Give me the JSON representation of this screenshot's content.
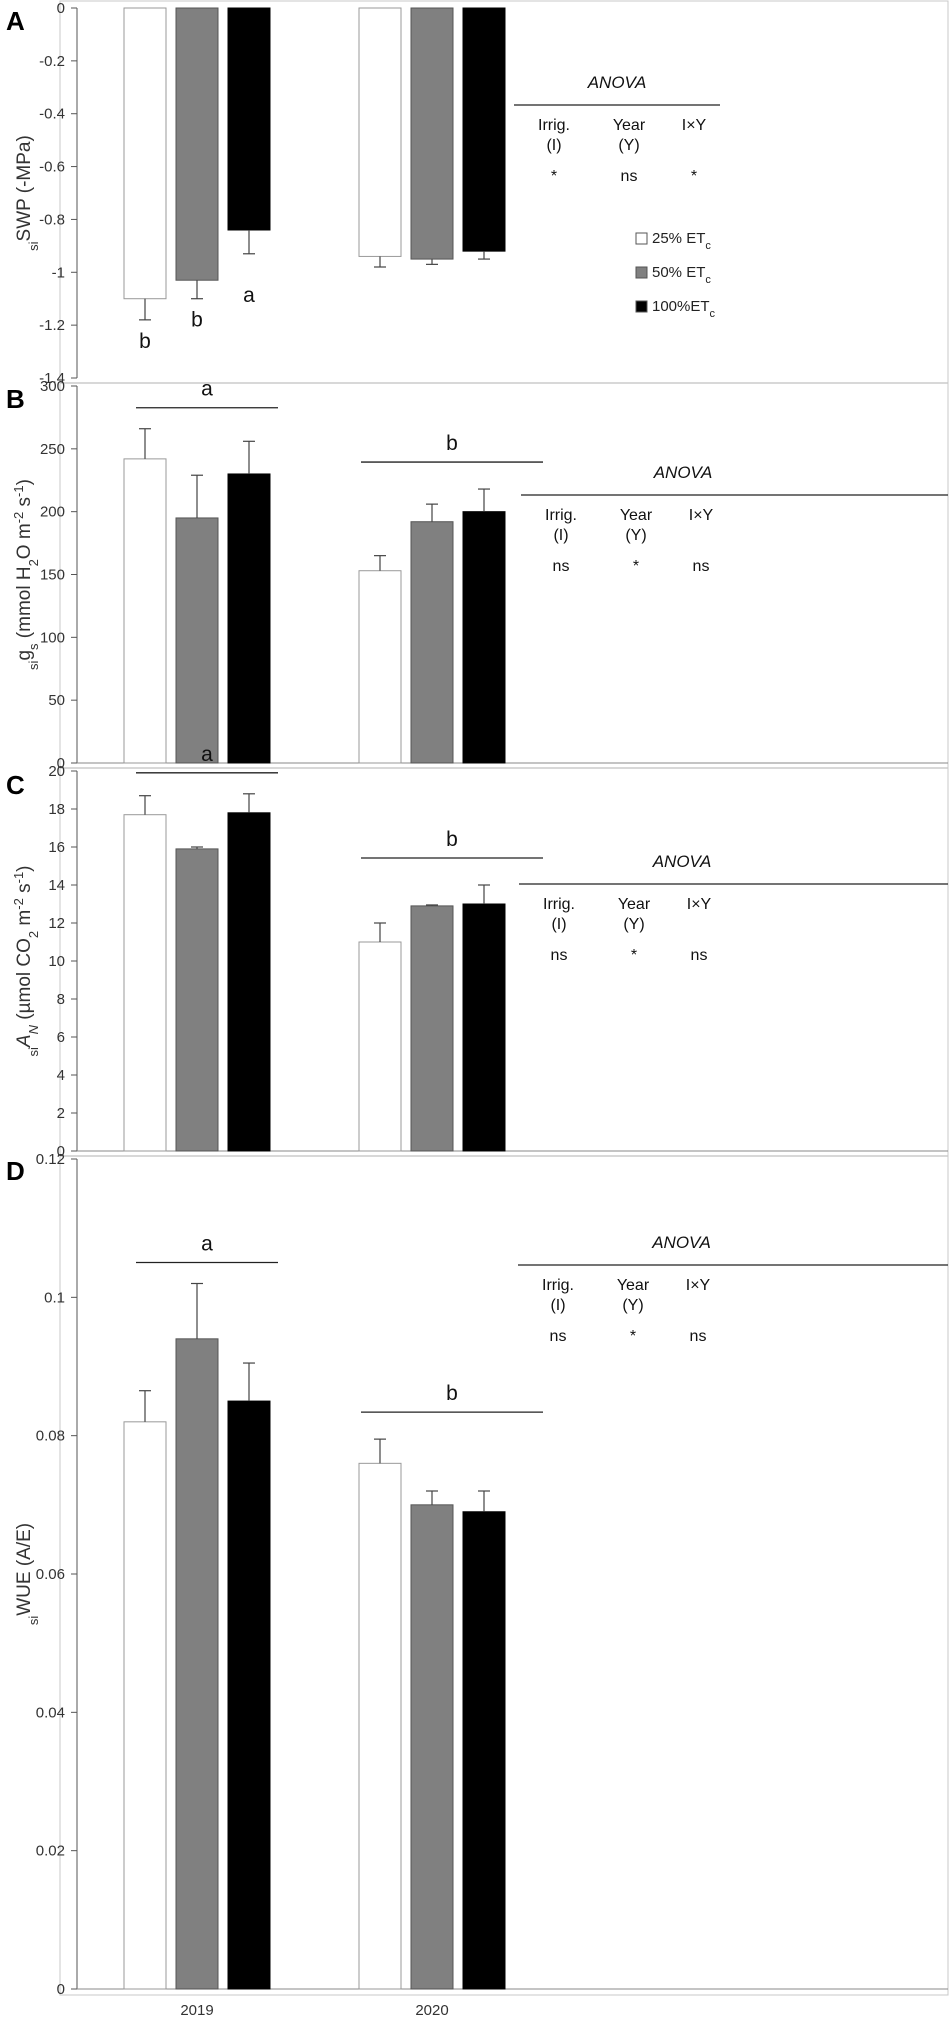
{
  "figure": {
    "x_categories": [
      "2019",
      "2020"
    ]
  },
  "legend": {
    "items": [
      {
        "main": "25% ET",
        "sub": "c",
        "color": "#ffffff"
      },
      {
        "main": "50% ET",
        "sub": "c",
        "color": "#808080"
      },
      {
        "main": "100%ET",
        "sub": "c",
        "color": "#000000"
      }
    ]
  },
  "chart_data": [
    {
      "type": "bar",
      "panel": "A",
      "ylabel_parts": [
        {
          "t": "si",
          "s": "sub"
        },
        {
          "t": "SWP (-MPa)",
          "s": "n"
        }
      ],
      "ylim": [
        -1.4,
        0
      ],
      "ytick_step": 0.2,
      "ytick_labels": [
        "0",
        "-0.2",
        "-0.4",
        "-0.6",
        "-0.8",
        "-1",
        "-1.2",
        "-1.4"
      ],
      "categories": [
        "2019",
        "2020"
      ],
      "series": [
        {
          "name": "25% ETc",
          "color": "#ffffff",
          "values": [
            -1.1,
            -0.94
          ],
          "errors": [
            0.08,
            0.04
          ]
        },
        {
          "name": "50% ETc",
          "color": "#808080",
          "values": [
            -1.03,
            -0.95
          ],
          "errors": [
            0.07,
            0.02
          ]
        },
        {
          "name": "100%ETc",
          "color": "#000000",
          "values": [
            -0.84,
            -0.92
          ],
          "errors": [
            0.09,
            0.03
          ]
        }
      ],
      "bar_letters": [
        [
          "b",
          ""
        ],
        [
          "b",
          ""
        ],
        [
          "a",
          ""
        ]
      ],
      "group_letters": [
        "",
        ""
      ],
      "anova": {
        "title": "ANOVA",
        "headers": [
          [
            "Irrig.",
            "(I)"
          ],
          [
            "Year",
            "(Y)"
          ],
          [
            "I×Y"
          ]
        ],
        "values": [
          "*",
          "ns",
          "*"
        ]
      },
      "show_legend": true
    },
    {
      "type": "bar",
      "panel": "B",
      "ylabel_parts": [
        {
          "t": "si",
          "s": "sub"
        },
        {
          "t": "g",
          "s": "n"
        },
        {
          "t": "s",
          "s": "sub"
        },
        {
          "t": " (mmol H",
          "s": "n"
        },
        {
          "t": "2",
          "s": "sub"
        },
        {
          "t": "O m",
          "s": "n"
        },
        {
          "t": "-2",
          "s": "sup"
        },
        {
          "t": " s",
          "s": "n"
        },
        {
          "t": "-1",
          "s": "sup"
        },
        {
          "t": ")",
          "s": "n"
        }
      ],
      "ylim": [
        0,
        300
      ],
      "ytick_step": 50,
      "ytick_labels": [
        "0",
        "50",
        "100",
        "150",
        "200",
        "250",
        "300"
      ],
      "categories": [
        "2019",
        "2020"
      ],
      "series": [
        {
          "name": "25% ETc",
          "color": "#ffffff",
          "values": [
            242,
            153
          ],
          "errors": [
            24,
            12
          ]
        },
        {
          "name": "50% ETc",
          "color": "#808080",
          "values": [
            195,
            192
          ],
          "errors": [
            34,
            14
          ]
        },
        {
          "name": "100%ETc",
          "color": "#000000",
          "values": [
            230,
            200
          ],
          "errors": [
            26,
            18
          ]
        }
      ],
      "bar_letters": [
        [
          "",
          ""
        ],
        [
          "",
          ""
        ],
        [
          "",
          ""
        ]
      ],
      "group_letters": [
        "a",
        "b"
      ],
      "anova": {
        "title": "ANOVA",
        "headers": [
          [
            "Irrig.",
            "(I)"
          ],
          [
            "Year",
            "(Y)"
          ],
          [
            "I×Y"
          ]
        ],
        "values": [
          "ns",
          "*",
          "ns"
        ]
      },
      "show_legend": false
    },
    {
      "type": "bar",
      "panel": "C",
      "ylabel_parts": [
        {
          "t": "si",
          "s": "sub"
        },
        {
          "t": "A",
          "s": "it"
        },
        {
          "t": "N",
          "s": "subit"
        },
        {
          "t": " (µmol CO",
          "s": "n"
        },
        {
          "t": "2",
          "s": "sub"
        },
        {
          "t": " m",
          "s": "n"
        },
        {
          "t": "-2",
          "s": "sup"
        },
        {
          "t": " s",
          "s": "n"
        },
        {
          "t": "-1",
          "s": "sup"
        },
        {
          "t": ")",
          "s": "n"
        }
      ],
      "ylim": [
        0,
        20
      ],
      "ytick_step": 2,
      "ytick_labels": [
        "0",
        "2",
        "4",
        "6",
        "8",
        "10",
        "12",
        "14",
        "16",
        "18",
        "20"
      ],
      "categories": [
        "2019",
        "2020"
      ],
      "series": [
        {
          "name": "25% ETc",
          "color": "#ffffff",
          "values": [
            17.7,
            11.0
          ],
          "errors": [
            1.0,
            1.0
          ]
        },
        {
          "name": "50% ETc",
          "color": "#808080",
          "values": [
            15.9,
            12.9
          ],
          "errors": [
            0.1,
            0.05
          ]
        },
        {
          "name": "100%ETc",
          "color": "#000000",
          "values": [
            17.8,
            13.0
          ],
          "errors": [
            1.0,
            1.0
          ]
        }
      ],
      "bar_letters": [
        [
          "",
          ""
        ],
        [
          "",
          ""
        ],
        [
          "",
          ""
        ]
      ],
      "group_letters": [
        "a",
        "b"
      ],
      "anova": {
        "title": "ANOVA",
        "headers": [
          [
            "Irrig.",
            "(I)"
          ],
          [
            "Year",
            "(Y)"
          ],
          [
            "I×Y"
          ]
        ],
        "values": [
          "ns",
          "*",
          "ns"
        ]
      },
      "show_legend": false
    },
    {
      "type": "bar",
      "panel": "D",
      "ylabel_parts": [
        {
          "t": "si",
          "s": "sub"
        },
        {
          "t": "WUE (A/E)",
          "s": "n"
        }
      ],
      "ylim": [
        0,
        0.12
      ],
      "ytick_step": 0.02,
      "ytick_labels": [
        "0",
        "0.02",
        "0.04",
        "0.06",
        "0.08",
        "0.1",
        "0.12"
      ],
      "categories": [
        "2019",
        "2020"
      ],
      "series": [
        {
          "name": "25% ETc",
          "color": "#ffffff",
          "values": [
            0.082,
            0.076
          ],
          "errors": [
            0.0045,
            0.0035
          ]
        },
        {
          "name": "50% ETc",
          "color": "#808080",
          "values": [
            0.094,
            0.07
          ],
          "errors": [
            0.008,
            0.002
          ]
        },
        {
          "name": "100%ETc",
          "color": "#000000",
          "values": [
            0.085,
            0.069
          ],
          "errors": [
            0.0055,
            0.003
          ]
        }
      ],
      "bar_letters": [
        [
          "",
          ""
        ],
        [
          "",
          ""
        ],
        [
          "",
          ""
        ]
      ],
      "group_letters": [
        "a",
        "b"
      ],
      "anova": {
        "title": "ANOVA",
        "headers": [
          [
            "Irrig.",
            "(I)"
          ],
          [
            "Year",
            "(Y)"
          ],
          [
            "I×Y"
          ]
        ],
        "values": [
          "ns",
          "*",
          "ns"
        ]
      },
      "show_legend": false
    }
  ]
}
